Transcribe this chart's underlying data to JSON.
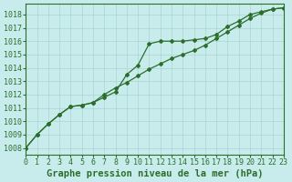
{
  "title": "Graphe pression niveau de la mer (hPa)",
  "background_color": "#c8ecec",
  "grid_color": "#aad4d4",
  "line_color": "#2d6e2d",
  "xlim": [
    0,
    23
  ],
  "ylim": [
    1007.5,
    1018.8
  ],
  "yticks": [
    1008,
    1009,
    1010,
    1011,
    1012,
    1013,
    1014,
    1015,
    1016,
    1017,
    1018
  ],
  "xticks": [
    0,
    1,
    2,
    3,
    4,
    5,
    6,
    7,
    8,
    9,
    10,
    11,
    12,
    13,
    14,
    15,
    16,
    17,
    18,
    19,
    20,
    21,
    22,
    23
  ],
  "x": [
    0,
    1,
    2,
    3,
    4,
    5,
    6,
    7,
    8,
    9,
    10,
    11,
    12,
    13,
    14,
    15,
    16,
    17,
    18,
    19,
    20,
    21,
    22,
    23
  ],
  "line1": [
    1008.0,
    1009.0,
    1009.8,
    1010.5,
    1011.1,
    1011.2,
    1011.4,
    1011.8,
    1012.2,
    1013.5,
    1014.2,
    1015.8,
    1016.0,
    1016.0,
    1016.0,
    1016.1,
    1016.2,
    1016.5,
    1017.1,
    1017.5,
    1018.0,
    1018.2,
    1018.4,
    1018.5
  ],
  "line2": [
    1008.0,
    1009.0,
    1009.8,
    1010.5,
    1011.1,
    1011.2,
    1011.4,
    1012.0,
    1012.5,
    1012.9,
    1013.4,
    1013.9,
    1014.3,
    1014.7,
    1015.0,
    1015.3,
    1015.7,
    1016.2,
    1016.7,
    1017.2,
    1017.7,
    1018.1,
    1018.4,
    1018.5
  ],
  "title_fontsize": 7.5,
  "tick_fontsize": 6
}
